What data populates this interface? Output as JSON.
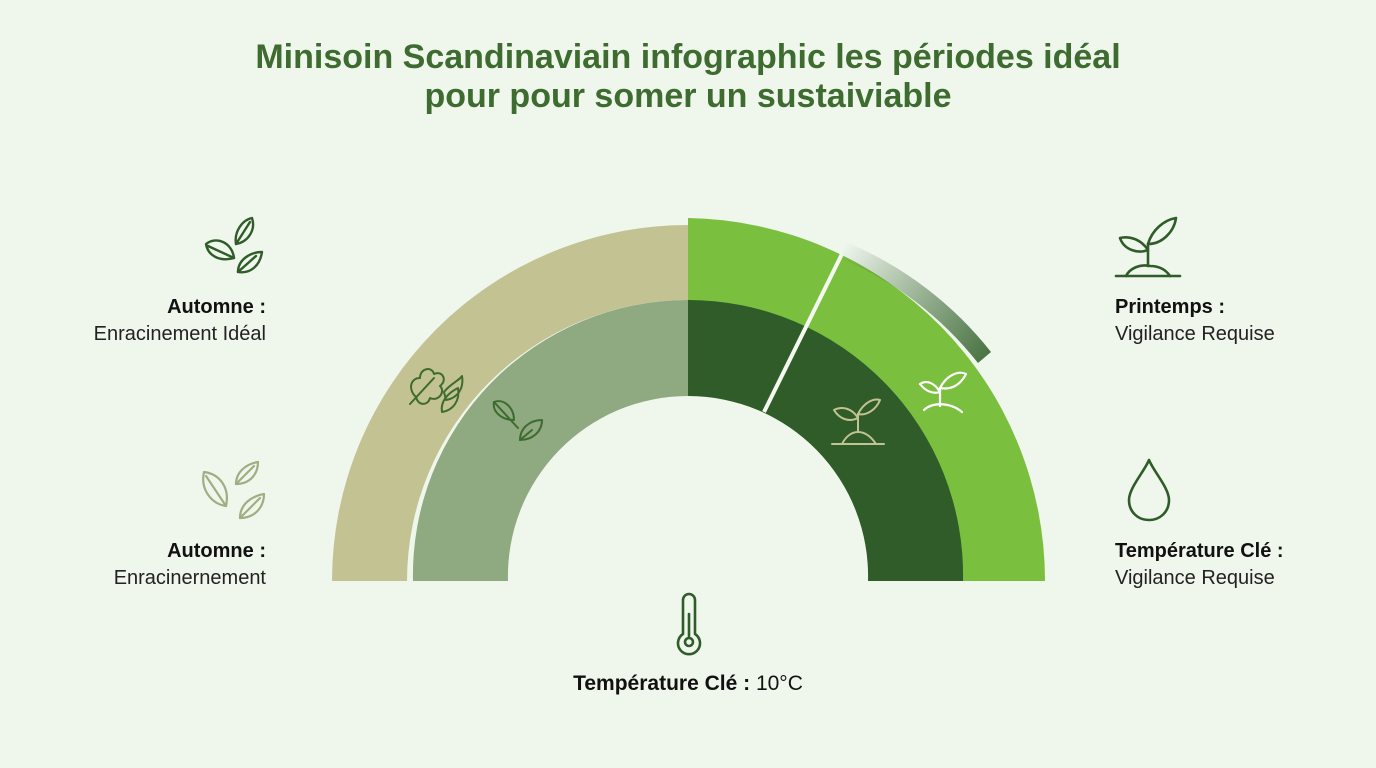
{
  "title": {
    "line1": "Minisoin Scandinaviain infographic les périodes idéal",
    "line2": "pour pour somer un sustaiviable"
  },
  "left_top": {
    "heading": "Automne :",
    "text": "Enracinement Idéal"
  },
  "left_bottom": {
    "heading": "Automne :",
    "text": "Enracinernement"
  },
  "right_top": {
    "heading": "Printemps :",
    "text": "Vigilance Requise"
  },
  "right_bottom": {
    "heading": "Température Clé :",
    "text": "Vigilance Requise"
  },
  "bottom": {
    "heading": "Température Clé :",
    "value": " 10°C"
  },
  "colors": {
    "title": "#3e6b2f",
    "autumn_outer": "#c3c292",
    "autumn_inner": "#8fa981",
    "spring_outer": "#7bbf3e",
    "spring_inner": "#2f5c28",
    "icon_dark": "#2f5c28",
    "icon_light": "#9fae82"
  },
  "icons": {
    "left_top": "leaves-icon",
    "left_bottom": "leaves-outline-icon",
    "right_top": "sprout-icon",
    "right_bottom": "water-drop-icon",
    "bottom": "thermometer-icon"
  }
}
